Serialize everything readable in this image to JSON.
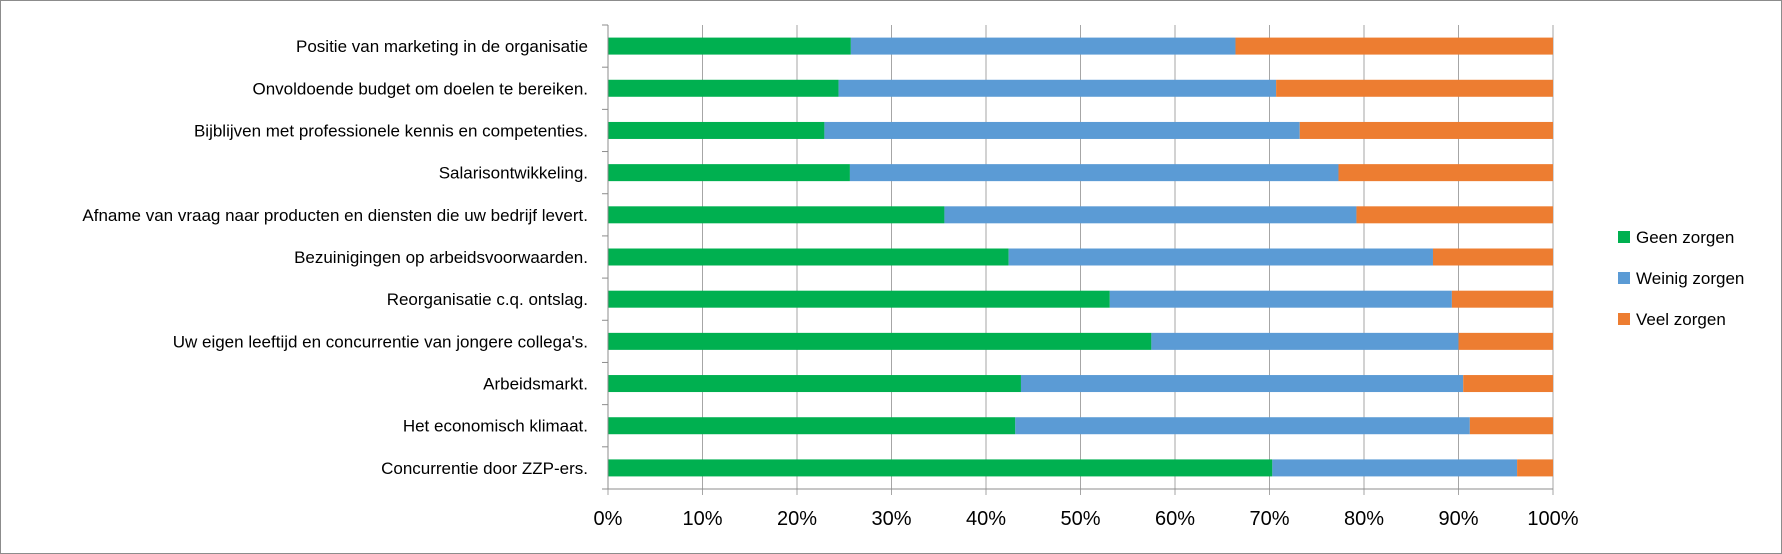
{
  "chart_data": {
    "type": "bar",
    "orientation": "horizontal",
    "stacked": "percent",
    "categories": [
      "Positie van marketing in de organisatie",
      "Onvoldoende budget om doelen te bereiken.",
      "Bijblijven met professionele kennis en competenties.",
      "Salarisontwikkeling.",
      "Afname van vraag naar producten en diensten die uw bedrijf levert.",
      "Bezuinigingen op arbeidsvoorwaarden.",
      "Reorganisatie c.q. ontslag.",
      "Uw eigen leeftijd en concurrentie van jongere collega's.",
      "Arbeidsmarkt.",
      "Het economisch klimaat.",
      "Concurrentie door ZZP-ers."
    ],
    "series": [
      {
        "name": "Geen zorgen",
        "color": "#00b050",
        "values": [
          25.7,
          24.4,
          22.9,
          25.6,
          35.6,
          42.4,
          53.1,
          57.5,
          43.7,
          43.1,
          70.3
        ]
      },
      {
        "name": "Weinig zorgen",
        "color": "#5b9bd5",
        "values": [
          40.7,
          46.3,
          50.3,
          51.7,
          43.6,
          44.9,
          36.2,
          32.5,
          46.8,
          48.1,
          25.9
        ]
      },
      {
        "name": "Veel zorgen",
        "color": "#ed7d31",
        "values": [
          33.6,
          29.3,
          26.8,
          22.7,
          20.8,
          12.7,
          10.7,
          10.0,
          9.5,
          8.8,
          3.8
        ]
      }
    ],
    "xlim": [
      0,
      100
    ],
    "xticks": [
      "0%",
      "10%",
      "20%",
      "30%",
      "40%",
      "50%",
      "60%",
      "70%",
      "80%",
      "90%",
      "100%"
    ],
    "grid": true,
    "legend_position": "right"
  }
}
